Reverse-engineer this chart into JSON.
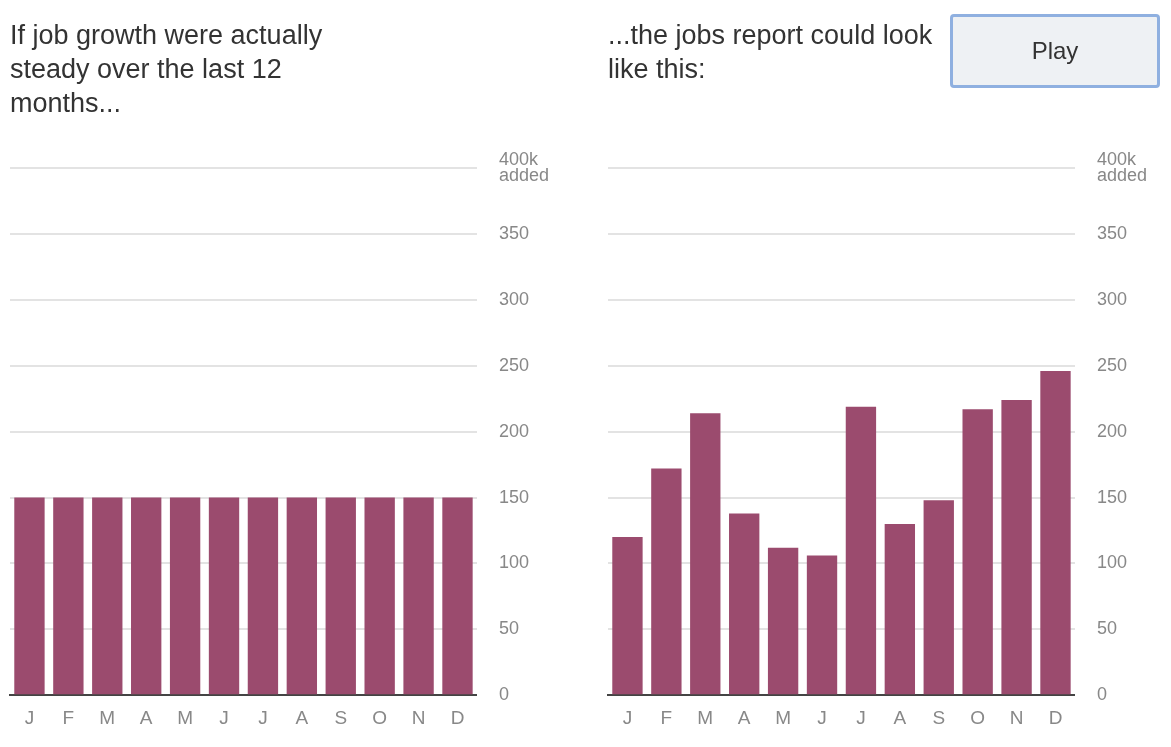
{
  "chart_data": [
    {
      "type": "bar",
      "title": "If job growth were actually steady over the last 12 months...",
      "categories": [
        "J",
        "F",
        "M",
        "A",
        "M",
        "J",
        "J",
        "A",
        "S",
        "O",
        "N",
        "D"
      ],
      "values": [
        150,
        150,
        150,
        150,
        150,
        150,
        150,
        150,
        150,
        150,
        150,
        150
      ],
      "color": "#9b4b6e",
      "ylim": [
        0,
        400
      ],
      "yticks": [
        0,
        50,
        100,
        150,
        200,
        250,
        300,
        350,
        {
          "value": 400,
          "label": "400k added"
        }
      ],
      "grid": "y"
    },
    {
      "type": "bar",
      "title": "...the jobs report could look like this:",
      "categories": [
        "J",
        "F",
        "M",
        "A",
        "M",
        "J",
        "J",
        "A",
        "S",
        "O",
        "N",
        "D"
      ],
      "values": [
        120,
        172,
        214,
        138,
        112,
        106,
        219,
        130,
        148,
        217,
        224,
        246
      ],
      "color": "#9b4b6e",
      "ylim": [
        0,
        400
      ],
      "yticks": [
        0,
        50,
        100,
        150,
        200,
        250,
        300,
        350,
        {
          "value": 400,
          "label": "400k added"
        }
      ],
      "grid": "y",
      "annotations": [
        "Play"
      ]
    }
  ]
}
